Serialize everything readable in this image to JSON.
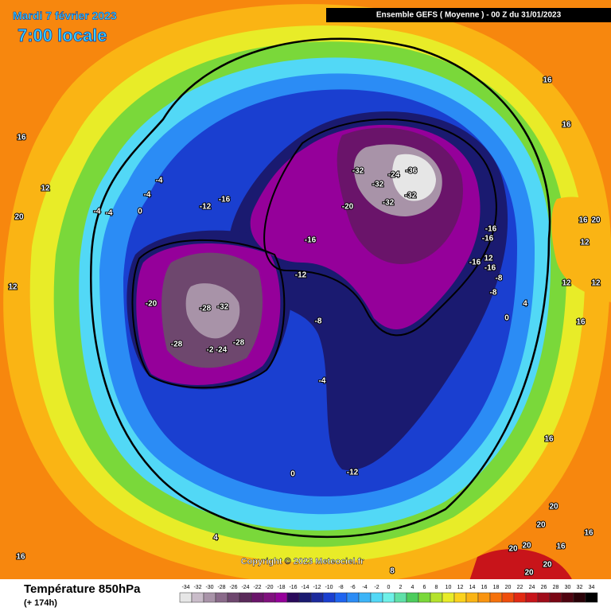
{
  "header": {
    "date": "Mardi 7 février 2023",
    "time": "7:00 locale",
    "run": "Ensemble GEFS  ( Moyenne )  -  00 Z du 31/01/2023"
  },
  "copyright": "Copyright © 2023 Meteociel.fr",
  "legend": {
    "title": "Température 850hPa",
    "lead": "(+ 174h)",
    "ticks": [
      -34,
      -32,
      -30,
      -28,
      -26,
      -24,
      -22,
      -20,
      -18,
      -16,
      -14,
      -12,
      -10,
      -8,
      -6,
      -4,
      -2,
      0,
      2,
      4,
      6,
      8,
      10,
      12,
      14,
      16,
      18,
      20,
      22,
      24,
      26,
      28,
      30,
      32,
      34
    ],
    "colors": [
      "#e6e6e6",
      "#c9bcc9",
      "#a893a8",
      "#8a6a8a",
      "#6e476e",
      "#5a2a5a",
      "#6a146a",
      "#80107e",
      "#95009a",
      "#2a0a5a",
      "#1a1a70",
      "#1c2a9c",
      "#1a3fd0",
      "#1e64f0",
      "#2b8cf5",
      "#3cb4f7",
      "#52d8f6",
      "#6ef0e8",
      "#5fe0a8",
      "#4ccc5c",
      "#7ad83a",
      "#b4e22c",
      "#e8ec28",
      "#fbd21c",
      "#fab414",
      "#f99410",
      "#f5720c",
      "#ef4e0c",
      "#e22a12",
      "#c8141a",
      "#a00c1a",
      "#7a0614",
      "#500410",
      "#2a0208",
      "#000000"
    ]
  },
  "contour_labels": [
    "-32",
    "-24",
    "-36",
    "-32",
    "-32",
    "-32",
    "-20",
    "-16",
    "-12",
    "-28",
    "-32",
    "-20",
    "-28",
    "-2",
    "-24",
    "-28",
    "-12",
    "-16",
    "-4",
    "-4",
    "-4",
    "-4",
    "0",
    "-8",
    "-4",
    "-12",
    "0",
    "4",
    "8",
    "-16",
    "-16",
    "-16",
    "12",
    "-16",
    "-8",
    "-8",
    "4",
    "0",
    "16",
    "16",
    "16",
    "12",
    "20",
    "12",
    "16",
    "16",
    "20",
    "20",
    "16",
    "16",
    "16",
    "20",
    "12",
    "12",
    "12",
    "16",
    "20",
    "20",
    "20",
    "20"
  ]
}
